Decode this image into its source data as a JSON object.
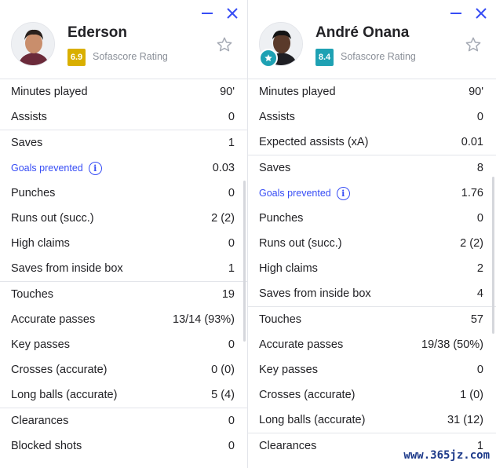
{
  "colors": {
    "accent_blue": "#374df5",
    "rating_yellow": "#d9af00",
    "rating_teal": "#1ea1b3",
    "divider": "#e3e5ea"
  },
  "left": {
    "player": {
      "name": "Ederson",
      "rating": "6.9",
      "rating_label": "Sofascore Rating",
      "rating_color": "#d9af00"
    },
    "groups": [
      [
        {
          "label": "Minutes played",
          "value": "90'"
        },
        {
          "label": "Assists",
          "value": "0"
        }
      ],
      [
        {
          "label": "Saves",
          "value": "1"
        },
        {
          "label": "Goals prevented",
          "value": "0.03",
          "link": true
        },
        {
          "label": "Punches",
          "value": "0"
        },
        {
          "label": "Runs out (succ.)",
          "value": "2 (2)"
        },
        {
          "label": "High claims",
          "value": "0"
        },
        {
          "label": "Saves from inside box",
          "value": "1"
        }
      ],
      [
        {
          "label": "Touches",
          "value": "19"
        },
        {
          "label": "Accurate passes",
          "value": "13/14 (93%)"
        },
        {
          "label": "Key passes",
          "value": "0"
        },
        {
          "label": "Crosses (accurate)",
          "value": "0 (0)"
        },
        {
          "label": "Long balls (accurate)",
          "value": "5 (4)"
        }
      ],
      [
        {
          "label": "Clearances",
          "value": "0"
        },
        {
          "label": "Blocked shots",
          "value": "0"
        }
      ]
    ]
  },
  "right": {
    "player": {
      "name": "André Onana",
      "rating": "8.4",
      "rating_label": "Sofascore Rating",
      "rating_color": "#1ea1b3"
    },
    "groups": [
      [
        {
          "label": "Minutes played",
          "value": "90'"
        },
        {
          "label": "Assists",
          "value": "0"
        },
        {
          "label": "Expected assists (xA)",
          "value": "0.01"
        }
      ],
      [
        {
          "label": "Saves",
          "value": "8"
        },
        {
          "label": "Goals prevented",
          "value": "1.76",
          "link": true
        },
        {
          "label": "Punches",
          "value": "0"
        },
        {
          "label": "Runs out (succ.)",
          "value": "2 (2)"
        },
        {
          "label": "High claims",
          "value": "2"
        },
        {
          "label": "Saves from inside box",
          "value": "4"
        }
      ],
      [
        {
          "label": "Touches",
          "value": "57"
        },
        {
          "label": "Accurate passes",
          "value": "19/38 (50%)"
        },
        {
          "label": "Key passes",
          "value": "0"
        },
        {
          "label": "Crosses (accurate)",
          "value": "1 (0)"
        },
        {
          "label": "Long balls (accurate)",
          "value": "31 (12)"
        }
      ],
      [
        {
          "label": "Clearances",
          "value": "1"
        }
      ]
    ]
  },
  "icons": {
    "minimize": "minimize-icon",
    "close": "close-icon",
    "favorite": "star-outline-icon",
    "info": "info-icon",
    "top_rated": "star-badge-icon"
  },
  "watermark": "www.365jz.com"
}
